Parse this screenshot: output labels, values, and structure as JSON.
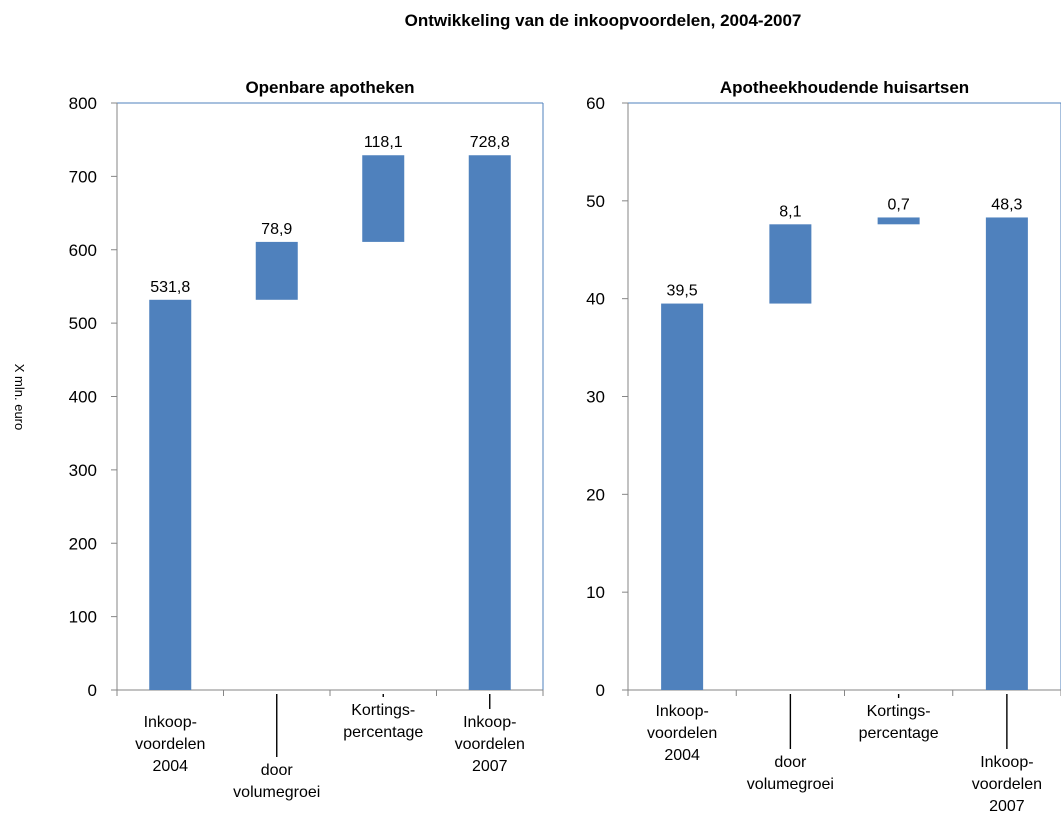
{
  "title": "Ontwikkeling van de inkoopvoordelen, 2004-2007",
  "ylabel": "X mln. euro",
  "colors": {
    "bar": "#4f81bd",
    "axis": "#868686",
    "frame": "#4f81bd"
  },
  "chart_data": [
    {
      "type": "bar",
      "subtype": "waterfall",
      "title": "Openbare apotheken",
      "ylabel": "X mln. euro",
      "ylim": [
        0,
        800
      ],
      "yticks": [
        "0",
        "100",
        "200",
        "300",
        "400",
        "500",
        "600",
        "700",
        "800"
      ],
      "categories": [
        [
          "Inkoop-",
          "voordelen",
          "2004"
        ],
        [
          "door",
          "volumegroei"
        ],
        [
          "Kortings-",
          "percentage"
        ],
        [
          "Inkoop-",
          "voordelen",
          "2007"
        ]
      ],
      "bars": [
        {
          "base": 0,
          "value": 531.8,
          "label": "531,8"
        },
        {
          "base": 531.8,
          "value": 78.9,
          "label": "78,9"
        },
        {
          "base": 610.7,
          "value": 118.1,
          "label": "118,1"
        },
        {
          "base": 0,
          "value": 728.8,
          "label": "728,8"
        }
      ]
    },
    {
      "type": "bar",
      "subtype": "waterfall",
      "title": "Apotheekhoudende huisartsen",
      "ylim": [
        0,
        60
      ],
      "yticks": [
        "0",
        "10",
        "20",
        "30",
        "40",
        "50",
        "60"
      ],
      "categories": [
        [
          "Inkoop-",
          "voordelen",
          "2004"
        ],
        [
          "door",
          "volumegroei"
        ],
        [
          "Kortings-",
          "percentage"
        ],
        [
          "Inkoop-",
          "voordelen",
          "2007"
        ]
      ],
      "bars": [
        {
          "base": 0,
          "value": 39.5,
          "label": "39,5"
        },
        {
          "base": 39.5,
          "value": 8.1,
          "label": "8,1"
        },
        {
          "base": 47.6,
          "value": 0.7,
          "label": "0,7"
        },
        {
          "base": 0,
          "value": 48.3,
          "label": "48,3"
        }
      ]
    }
  ]
}
